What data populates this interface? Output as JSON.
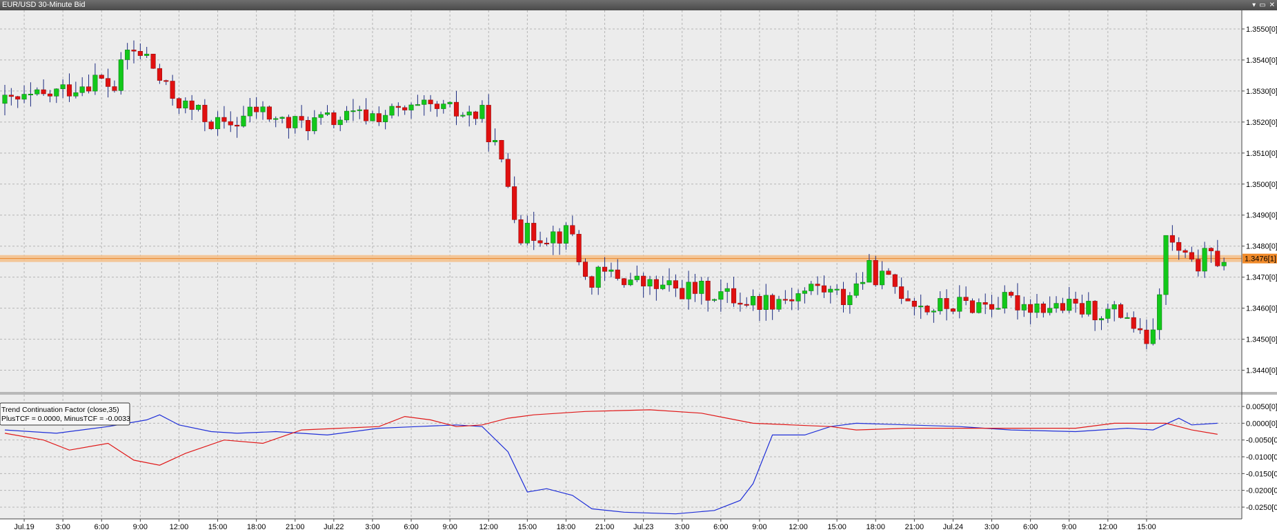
{
  "window": {
    "title": "EUR/USD 30-Minute Bid",
    "controls": [
      "▾",
      "▭",
      "✕"
    ]
  },
  "chart_data": [
    {
      "type": "candlestick",
      "title": "EUR/USD 30-Minute Bid",
      "yaxis_labels": [
        "1.3550[0]",
        "1.3540[0]",
        "1.3530[0]",
        "1.3520[0]",
        "1.3510[0]",
        "1.3500[0]",
        "1.3490[0]",
        "1.3480[0]",
        "1.3470[0]",
        "1.3460[0]",
        "1.3450[0]",
        "1.3440[0]"
      ],
      "yaxis_values": [
        1.355,
        1.354,
        1.353,
        1.352,
        1.351,
        1.35,
        1.349,
        1.348,
        1.347,
        1.346,
        1.345,
        1.344
      ],
      "ylim": [
        1.3433,
        1.3556
      ],
      "current_price_label": "1.3476[1]",
      "current_price": 1.3476,
      "x_tick_labels": [
        "Jul.19",
        "3:00",
        "6:00",
        "9:00",
        "12:00",
        "15:00",
        "18:00",
        "21:00",
        "Jul.22",
        "3:00",
        "6:00",
        "9:00",
        "12:00",
        "15:00",
        "18:00",
        "21:00",
        "Jul.23",
        "3:00",
        "6:00",
        "9:00",
        "12:00",
        "15:00",
        "18:00",
        "21:00",
        "Jul.24",
        "3:00",
        "6:00",
        "9:00",
        "12:00",
        "15:00"
      ],
      "ohlc_anchor_closes": [
        [
          0,
          1.3526
        ],
        [
          6,
          1.3528
        ],
        [
          10,
          1.3531
        ],
        [
          14,
          1.3534
        ],
        [
          17,
          1.3531
        ],
        [
          19,
          1.3543
        ],
        [
          22,
          1.3541
        ],
        [
          25,
          1.353
        ],
        [
          28,
          1.3525
        ],
        [
          34,
          1.3518
        ],
        [
          39,
          1.3524
        ],
        [
          44,
          1.3519
        ],
        [
          56,
          1.3522
        ],
        [
          66,
          1.3524
        ],
        [
          74,
          1.3522
        ],
        [
          76,
          1.3512
        ],
        [
          78,
          1.35
        ],
        [
          80,
          1.3484
        ],
        [
          88,
          1.3484
        ],
        [
          90,
          1.3469
        ],
        [
          94,
          1.3471
        ],
        [
          100,
          1.3467
        ],
        [
          110,
          1.3465
        ],
        [
          116,
          1.3462
        ],
        [
          122,
          1.3464
        ],
        [
          126,
          1.3467
        ],
        [
          130,
          1.3463
        ],
        [
          134,
          1.3472
        ],
        [
          138,
          1.3467
        ],
        [
          143,
          1.346
        ],
        [
          148,
          1.3461
        ],
        [
          156,
          1.3462
        ],
        [
          165,
          1.346
        ],
        [
          174,
          1.3458
        ],
        [
          176,
          1.345
        ],
        [
          178,
          1.345
        ],
        [
          180,
          1.3482
        ],
        [
          182,
          1.3478
        ],
        [
          184,
          1.3473
        ],
        [
          186,
          1.3476
        ],
        [
          188,
          1.3476
        ]
      ],
      "grid": true
    },
    {
      "type": "line",
      "title": "Trend Continuation Factor (close,35)",
      "legend_values": "PlusTCF = 0.0000, MinusTCF = -0.0033",
      "yaxis_labels": [
        "0.0050[0]",
        "0.0000[0]",
        "-0.0050[0]",
        "-0.0100[0]",
        "-0.0150[0]",
        "-0.0200[0]",
        "-0.0250[0]"
      ],
      "yaxis_values": [
        0.005,
        0.0,
        -0.005,
        -0.01,
        -0.015,
        -0.02,
        -0.025
      ],
      "ylim": [
        -0.0285,
        0.0085
      ],
      "series": [
        {
          "name": "PlusTCF",
          "color": "#1f2fd8",
          "points": [
            [
              0,
              -0.002
            ],
            [
              8,
              -0.003
            ],
            [
              16,
              -0.001
            ],
            [
              22,
              0.001
            ],
            [
              24,
              0.0025
            ],
            [
              27,
              -0.0005
            ],
            [
              32,
              -0.0025
            ],
            [
              36,
              -0.003
            ],
            [
              42,
              -0.0025
            ],
            [
              50,
              -0.0035
            ],
            [
              58,
              -0.0015
            ],
            [
              64,
              -0.001
            ],
            [
              70,
              -0.0005
            ],
            [
              74,
              -0.001
            ],
            [
              78,
              -0.0085
            ],
            [
              81,
              -0.0205
            ],
            [
              84,
              -0.0195
            ],
            [
              88,
              -0.0215
            ],
            [
              91,
              -0.0255
            ],
            [
              96,
              -0.0265
            ],
            [
              104,
              -0.027
            ],
            [
              110,
              -0.026
            ],
            [
              114,
              -0.023
            ],
            [
              116,
              -0.018
            ],
            [
              119,
              -0.0035
            ],
            [
              124,
              -0.0035
            ],
            [
              128,
              -0.001
            ],
            [
              132,
              0.0
            ],
            [
              140,
              -0.0005
            ],
            [
              148,
              -0.001
            ],
            [
              156,
              -0.002
            ],
            [
              166,
              -0.0025
            ],
            [
              174,
              -0.0015
            ],
            [
              178,
              -0.002
            ],
            [
              182,
              0.0015
            ],
            [
              184,
              -0.0005
            ],
            [
              188,
              0.0
            ]
          ]
        },
        {
          "name": "MinusTCF",
          "color": "#e01818",
          "points": [
            [
              0,
              -0.003
            ],
            [
              6,
              -0.005
            ],
            [
              10,
              -0.008
            ],
            [
              16,
              -0.006
            ],
            [
              20,
              -0.011
            ],
            [
              24,
              -0.0125
            ],
            [
              28,
              -0.009
            ],
            [
              34,
              -0.005
            ],
            [
              40,
              -0.006
            ],
            [
              46,
              -0.002
            ],
            [
              52,
              -0.0015
            ],
            [
              58,
              -0.001
            ],
            [
              62,
              0.002
            ],
            [
              66,
              0.001
            ],
            [
              70,
              -0.001
            ],
            [
              74,
              -0.0005
            ],
            [
              78,
              0.0015
            ],
            [
              82,
              0.0025
            ],
            [
              90,
              0.0035
            ],
            [
              100,
              0.004
            ],
            [
              108,
              0.003
            ],
            [
              112,
              0.0015
            ],
            [
              116,
              0.0
            ],
            [
              122,
              -0.0005
            ],
            [
              128,
              -0.001
            ],
            [
              132,
              -0.002
            ],
            [
              140,
              -0.0015
            ],
            [
              148,
              -0.0015
            ],
            [
              156,
              -0.0015
            ],
            [
              166,
              -0.0015
            ],
            [
              172,
              0.0
            ],
            [
              176,
              0.0
            ],
            [
              180,
              0.0
            ],
            [
              184,
              -0.002
            ],
            [
              188,
              -0.0033
            ]
          ]
        }
      ],
      "grid": true
    }
  ]
}
